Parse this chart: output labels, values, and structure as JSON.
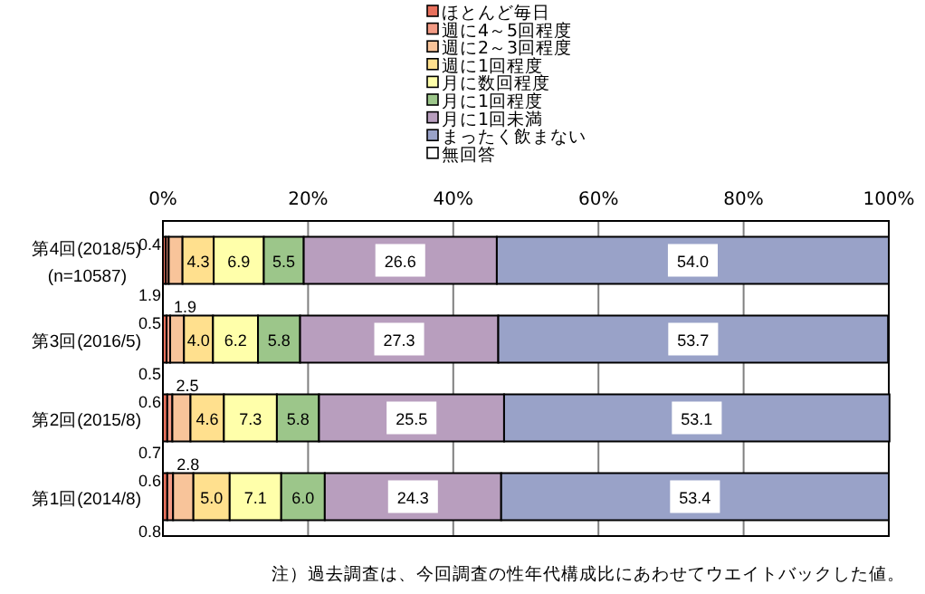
{
  "chart_data": {
    "type": "bar",
    "orientation": "horizontal",
    "stacked": true,
    "categories": [
      "第4回(2018/5)\n(n=10587)",
      "第3回(2016/5)",
      "第2回(2015/8)",
      "第1回(2014/8)"
    ],
    "series": [
      {
        "name": "ほとんど毎日",
        "color": "#e8705c",
        "values": [
          0.4,
          0.5,
          0.6,
          0.6
        ],
        "value_labels": [
          "0.4",
          "0.5",
          "0.6",
          "0.6"
        ]
      },
      {
        "name": "週に4～5回程度",
        "color": "#f29a84",
        "values": [
          0.4,
          0.5,
          0.7,
          0.8
        ],
        "value_labels": [
          null,
          "0.5",
          "0.7",
          "0.8"
        ]
      },
      {
        "name": "週に2～3回程度",
        "color": "#f8c49a",
        "values": [
          1.9,
          1.9,
          2.5,
          2.8
        ],
        "value_labels": [
          "1.9",
          "1.9",
          "2.5",
          "2.8"
        ]
      },
      {
        "name": "週に1回程度",
        "color": "#ffe08e",
        "values": [
          4.3,
          4.0,
          4.6,
          5.0
        ],
        "value_labels": [
          "4.3",
          "4.0",
          "4.6",
          "5.0"
        ]
      },
      {
        "name": "月に数回程度",
        "color": "#ffffaa",
        "values": [
          6.9,
          6.2,
          7.3,
          7.1
        ],
        "value_labels": [
          "6.9",
          "6.2",
          "7.3",
          "7.1"
        ]
      },
      {
        "name": "月に1回程度",
        "color": "#9cc68a",
        "values": [
          5.5,
          5.8,
          5.8,
          6.0
        ],
        "value_labels": [
          "5.5",
          "5.8",
          "5.8",
          "6.0"
        ]
      },
      {
        "name": "月に1回未満",
        "color": "#b89ebe",
        "values": [
          26.6,
          27.3,
          25.5,
          24.3
        ],
        "value_labels": [
          "26.6",
          "27.3",
          "25.5",
          "24.3"
        ]
      },
      {
        "name": "まったく飲まない",
        "color": "#99a2c8",
        "values": [
          54.0,
          53.7,
          53.1,
          53.4
        ],
        "value_labels": [
          "54.0",
          "53.7",
          "53.1",
          "53.4"
        ]
      },
      {
        "name": "無回答",
        "color": "#ffffff",
        "values": [
          null,
          null,
          null,
          null
        ],
        "value_labels": [
          null,
          null,
          null,
          null
        ]
      }
    ],
    "xlim": [
      0,
      100
    ],
    "xticks": [
      {
        "value": 0,
        "label": "0%"
      },
      {
        "value": 20,
        "label": "20%"
      },
      {
        "value": 40,
        "label": "40%"
      },
      {
        "value": 60,
        "label": "60%"
      },
      {
        "value": 80,
        "label": "80%"
      },
      {
        "value": 100,
        "label": "100%"
      }
    ],
    "grid": "x",
    "legend": "top",
    "annotations": [
      "注）過去調査は、今回調査の性年代構成比にあわせてウエイトバックした値。"
    ]
  }
}
